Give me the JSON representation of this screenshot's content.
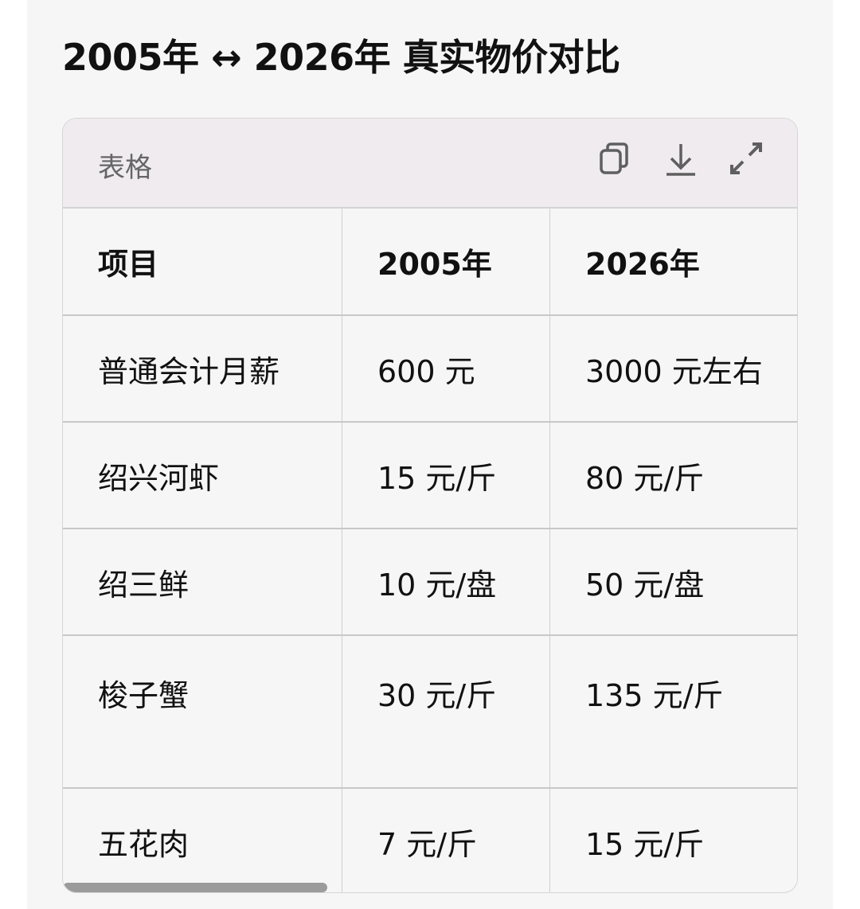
{
  "title": "2005年 ↔ 2026年 真实物价对比",
  "card": {
    "label": "表格",
    "icons": [
      "copy-icon",
      "download-icon",
      "expand-icon"
    ]
  },
  "table": {
    "headers": [
      "项目",
      "2005年",
      "2026年"
    ],
    "rows": [
      [
        "普通会计月薪",
        "600 元",
        "3000 元左右"
      ],
      [
        "绍兴河虾",
        "15 元/斤",
        "80 元/斤"
      ],
      [
        "绍三鲜",
        "10 元/盘",
        "50 元/盘"
      ],
      [
        "梭子蟹",
        "30 元/斤",
        "135 元/斤"
      ],
      [
        "五花肉",
        "7 元/斤",
        "15 元/斤"
      ]
    ]
  }
}
